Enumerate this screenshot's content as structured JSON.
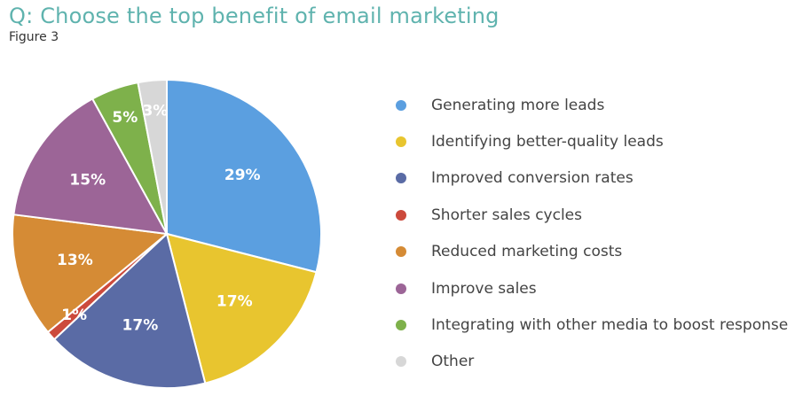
{
  "header": {
    "title": "Q: Choose the top benefit of email marketing",
    "subtitle": "Figure 3"
  },
  "chart_data": {
    "type": "pie",
    "title": "Q: Choose the top benefit of email marketing",
    "categories": [
      "Generating more leads",
      "Identifying better-quality leads",
      "Improved conversion rates",
      "Shorter sales cycles",
      "Reduced marketing costs",
      "Improve sales",
      "Integrating with other media to boost response",
      "Other"
    ],
    "values": [
      29,
      17,
      17,
      1,
      13,
      15,
      5,
      3
    ],
    "data_labels": [
      "29%",
      "17%",
      "17%",
      "1%",
      "13%",
      "15%",
      "5%",
      "3%"
    ],
    "colors": [
      "#5b9fe0",
      "#e8c52f",
      "#5a6ba5",
      "#cc4a3c",
      "#d58b35",
      "#9c6597",
      "#7eb14b",
      "#d7d7d7"
    ],
    "legend_placement": "right"
  }
}
